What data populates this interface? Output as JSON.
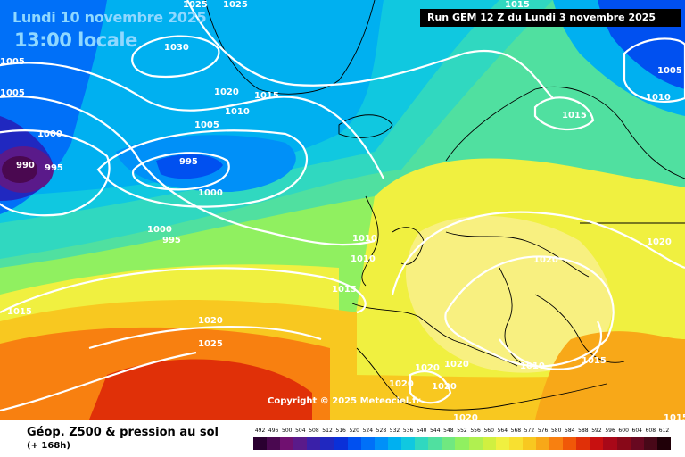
{
  "header": {
    "date": "Lundi 10 novembre 2025",
    "local_time": "13:00 locale",
    "run_info": "Run GEM 12 Z du Lundi 3 novembre 2025"
  },
  "footer": {
    "title": "Géop. Z500 & pression au sol",
    "lead_time": "(+ 168h)",
    "copyright": "Copyright © 2025 Meteociel.fr"
  },
  "legend": {
    "labels": [
      "492",
      "496",
      "500",
      "504",
      "508",
      "512",
      "516",
      "520",
      "524",
      "528",
      "532",
      "536",
      "540",
      "544",
      "548",
      "552",
      "556",
      "560",
      "564",
      "568",
      "572",
      "576",
      "580",
      "584",
      "588",
      "592",
      "596",
      "600",
      "604",
      "608",
      "612"
    ],
    "colors": [
      "#2a0030",
      "#4a0850",
      "#701070",
      "#5a1a8a",
      "#3a20a8",
      "#2028c0",
      "#0a30d8",
      "#0050f0",
      "#0070f8",
      "#0090f8",
      "#00b0f0",
      "#10c8e0",
      "#30d8c0",
      "#50e0a0",
      "#70e880",
      "#90f060",
      "#b0f050",
      "#d0f040",
      "#f0f040",
      "#f8e030",
      "#f8c820",
      "#f8a818",
      "#f88010",
      "#f05808",
      "#e03008",
      "#c81010",
      "#a80818",
      "#880818",
      "#680820",
      "#480818",
      "#200008"
    ]
  },
  "isobars": [
    "1025",
    "1025",
    "1030",
    "1020",
    "1015",
    "1010",
    "1005",
    "1000",
    "995",
    "1000",
    "995",
    "990",
    "995",
    "1000",
    "1005",
    "1005",
    "1010",
    "1010",
    "1015",
    "1015",
    "1020",
    "1025",
    "1015",
    "1020",
    "1015",
    "1010",
    "1020",
    "1020",
    "1020",
    "1020",
    "1020",
    "1010",
    "1005",
    "1015",
    "1020",
    "1015"
  ]
}
